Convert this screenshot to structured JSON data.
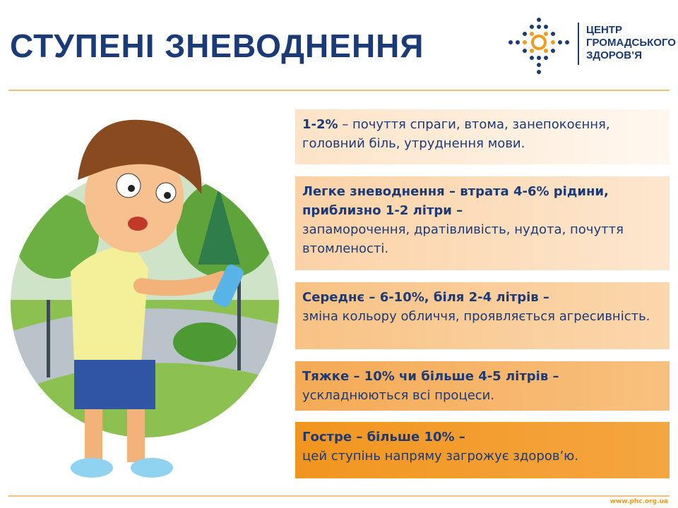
{
  "header": {
    "title": "СТУПЕНІ ЗНЕВОДНЕННЯ",
    "logo": [
      "ЦЕНТР",
      "ГРОМАДСЬКОГО",
      "ЗДОРОВ’Я"
    ]
  },
  "stages": [
    {
      "bold": "1-2%",
      "text": "– почуття спраги, втома, занепокоєння, головний біль, утруднення мови."
    },
    {
      "bold": "Легке зневоднення – втрата 4-6% рідини, приблизно 1-2 літри –",
      "text": "запаморочення, дратівливість, нудота, почуття втомленості."
    },
    {
      "bold": "Середнє – 6-10%, біля 2-4 літрів –",
      "text": "зміна кольору обличчя, проявляється агресивність."
    },
    {
      "bold": "Тяжке – 10% чи більше 4-5 літрів –",
      "text": "ускладнюються всі процеси."
    },
    {
      "bold": "Гостре – більше 10% –",
      "text": "цей ступінь напряму загрожує здоров’ю."
    }
  ],
  "footer": {
    "url": "www.phc.org.ua"
  }
}
